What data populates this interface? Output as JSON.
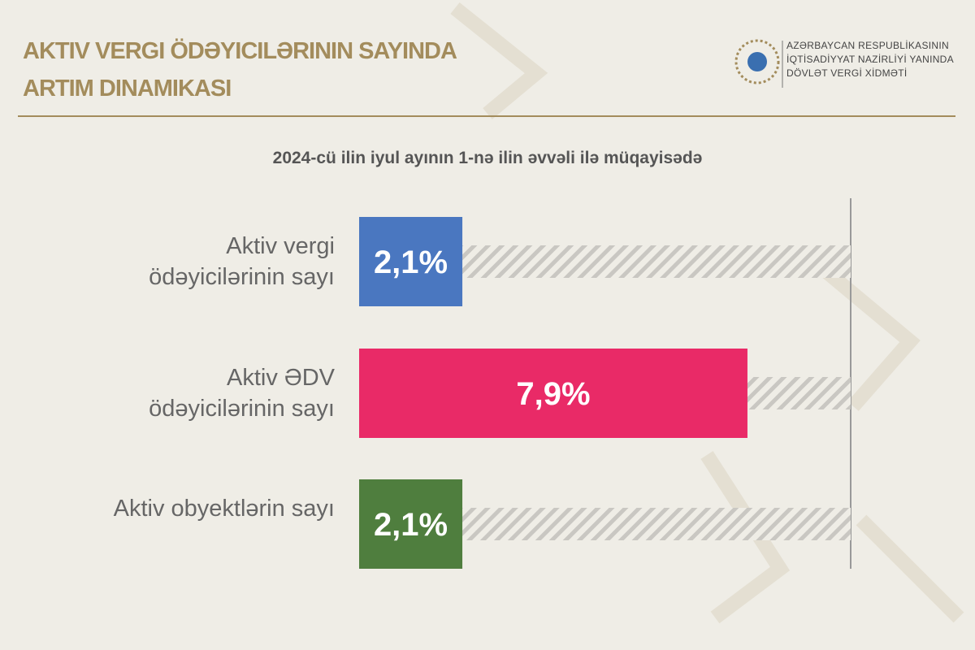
{
  "chart_data": {
    "type": "bar",
    "orientation": "horizontal",
    "title": "AKTIV VERGI ÖDƏYICILƏRININ SAYINDA ARTIM DINAMIKASI",
    "subtitle": "2024-cü ilin iyul ayının 1-nə ilin əvvəli ilə müqayisədə",
    "logo_text": [
      "AZƏRBAYCAN RESPUBLİKASININ",
      "İQTİSADİYYAT NAZİRLİYİ YANINDA",
      "DÖVLƏT VERGİ XİDMƏTİ"
    ],
    "categories": [
      "Aktiv vergi ödəyicilərinin sayı",
      "Aktiv ƏDV ödəyicilərinin sayı",
      "Aktiv obyektlərin sayı"
    ],
    "values": [
      2.1,
      7.9,
      2.1
    ],
    "value_labels": [
      "2,1%",
      "7,9%",
      "2,1%"
    ],
    "colors": [
      "#4a77c0",
      "#e92a67",
      "#4f7e3e"
    ],
    "xlim": [
      0,
      10
    ]
  }
}
